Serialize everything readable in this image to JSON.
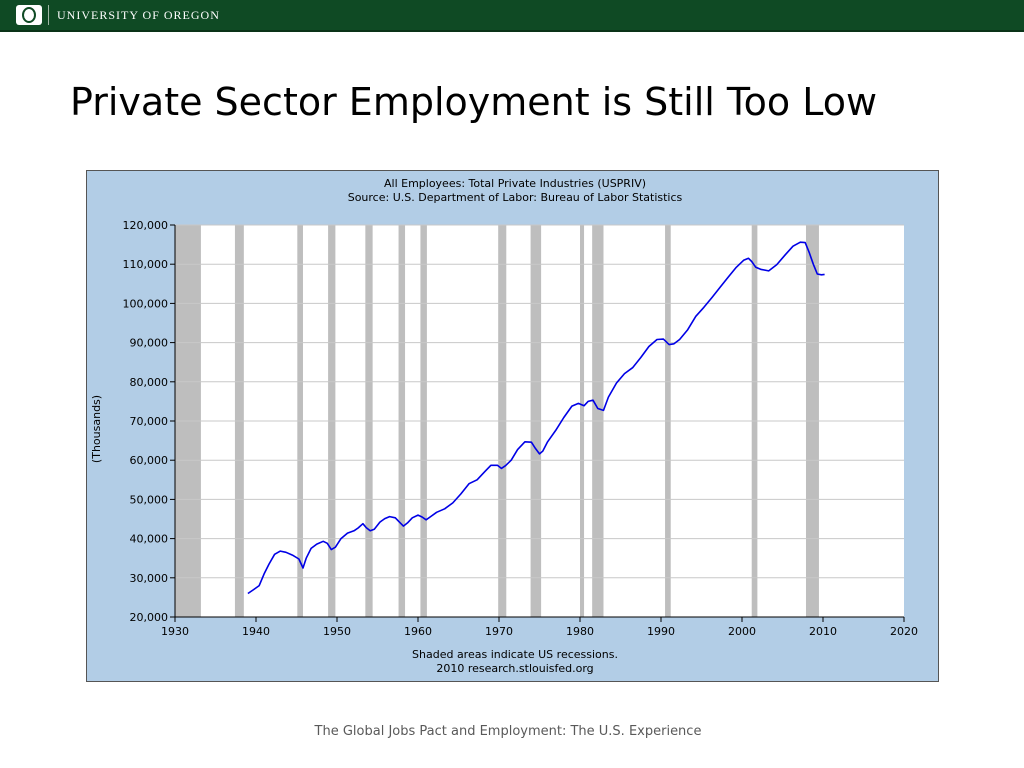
{
  "header": {
    "logo_letter": "O",
    "university_name": "UNIVERSITY OF OREGON"
  },
  "slide": {
    "title": "Private Sector Employment is Still Too Low",
    "footer": "The Global Jobs Pact and Employment: The U.S. Experience"
  },
  "colors": {
    "brand_green": "#0f4a24",
    "chart_background": "#b2cde6",
    "plot_background": "#ffffff",
    "recession_band": "#bebebe",
    "series_line": "#0000e6"
  },
  "chart_data": {
    "type": "line",
    "title": "All Employees: Total Private Industries (USPRIV)",
    "subtitle": "Source: U.S. Department of Labor: Bureau of Labor Statistics",
    "xlabel": "",
    "ylabel": "(Thousands)",
    "xlim": [
      1930,
      2020
    ],
    "ylim": [
      20000,
      120000
    ],
    "x_ticks": [
      1930,
      1940,
      1950,
      1960,
      1970,
      1980,
      1990,
      2000,
      2010,
      2020
    ],
    "y_ticks": [
      20000,
      30000,
      40000,
      50000,
      60000,
      70000,
      80000,
      90000,
      100000,
      110000,
      120000
    ],
    "y_tick_labels": [
      "20,000",
      "30,000",
      "40,000",
      "50,000",
      "60,000",
      "70,000",
      "80,000",
      "90,000",
      "100,000",
      "110,000",
      "120,000"
    ],
    "grid": true,
    "notes": [
      "Shaded areas indicate US recessions.",
      "2010 research.stlouisfed.org"
    ],
    "recessions": [
      [
        1930.0,
        1933.2
      ],
      [
        1937.4,
        1938.5
      ],
      [
        1945.1,
        1945.8
      ],
      [
        1948.9,
        1949.8
      ],
      [
        1953.5,
        1954.4
      ],
      [
        1957.6,
        1958.4
      ],
      [
        1960.3,
        1961.1
      ],
      [
        1969.9,
        1970.9
      ],
      [
        1973.9,
        1975.2
      ],
      [
        1980.0,
        1980.5
      ],
      [
        1981.5,
        1982.9
      ],
      [
        1990.5,
        1991.2
      ],
      [
        2001.2,
        2001.9
      ],
      [
        2007.9,
        2009.5
      ]
    ],
    "series": [
      {
        "x": [
          1939.0,
          1939.7,
          1940.4,
          1941.0,
          1941.6,
          1942.3,
          1943.0,
          1943.7,
          1944.5,
          1945.3,
          1945.8,
          1946.2,
          1946.8,
          1947.5,
          1948.3,
          1948.8,
          1949.3,
          1949.8,
          1950.5,
          1951.3,
          1952.1,
          1952.6,
          1953.2,
          1953.6,
          1954.1,
          1954.6,
          1955.3,
          1955.9,
          1956.5,
          1957.2,
          1957.7,
          1958.2,
          1958.7,
          1959.3,
          1960.0,
          1960.5,
          1961.0,
          1961.5,
          1962.3,
          1963.3,
          1964.3,
          1965.3,
          1966.3,
          1967.3,
          1968.3,
          1969.0,
          1969.8,
          1970.3,
          1970.8,
          1971.5,
          1972.3,
          1973.2,
          1974.0,
          1974.5,
          1975.0,
          1975.4,
          1976.0,
          1977.0,
          1978.0,
          1979.0,
          1979.8,
          1980.5,
          1981.0,
          1981.6,
          1982.2,
          1982.9,
          1983.5,
          1984.5,
          1985.5,
          1986.5,
          1987.5,
          1988.5,
          1989.5,
          1990.3,
          1991.0,
          1991.6,
          1992.3,
          1993.3,
          1994.3,
          1995.3,
          1996.3,
          1997.3,
          1998.3,
          1999.3,
          2000.2,
          2000.8,
          2001.2,
          2001.7,
          2002.3,
          2003.3,
          2004.3,
          2005.3,
          2006.3,
          2007.2,
          2007.8,
          2008.3,
          2008.8,
          2009.3,
          2009.8,
          2010.2
        ],
        "values": [
          26000,
          27000,
          28000,
          31000,
          33500,
          36000,
          36800,
          36500,
          35800,
          34800,
          32500,
          35000,
          37500,
          38600,
          39300,
          38800,
          37200,
          37800,
          40000,
          41400,
          42000,
          42700,
          43800,
          42800,
          42000,
          42400,
          44200,
          45100,
          45600,
          45300,
          44200,
          43200,
          44000,
          45300,
          46000,
          45500,
          44800,
          45500,
          46700,
          47600,
          49100,
          51400,
          54000,
          55000,
          57200,
          58700,
          58700,
          57900,
          58600,
          60000,
          62700,
          64700,
          64600,
          63000,
          61600,
          62300,
          64700,
          67600,
          70900,
          73800,
          74500,
          73900,
          75000,
          75300,
          73200,
          72700,
          76100,
          79700,
          82100,
          83600,
          86200,
          89000,
          90800,
          90900,
          89500,
          89700,
          90800,
          93300,
          96700,
          99000,
          101500,
          104100,
          106700,
          109200,
          111000,
          111500,
          110700,
          109200,
          108700,
          108300,
          109900,
          112300,
          114600,
          115600,
          115500,
          113000,
          110000,
          107500,
          107300,
          107400
        ]
      }
    ]
  }
}
